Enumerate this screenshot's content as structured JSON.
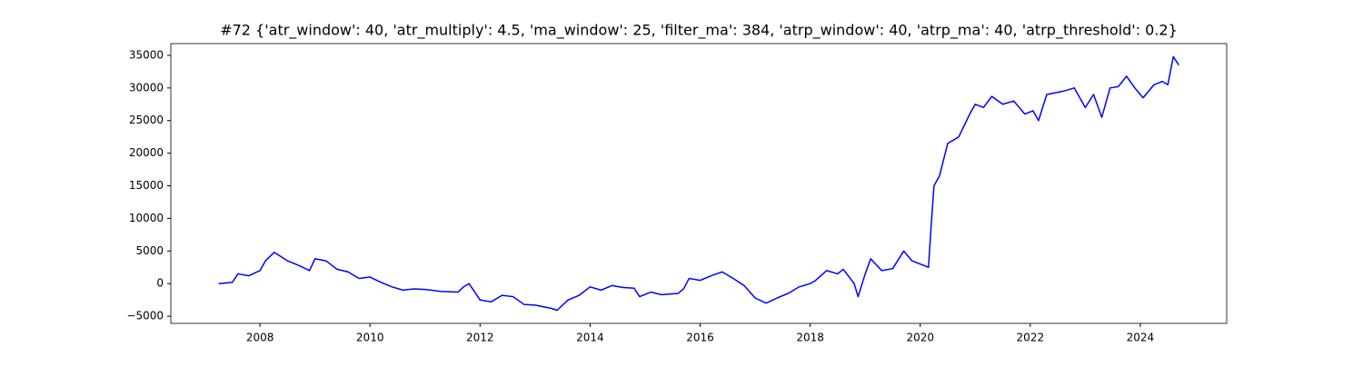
{
  "chart_data": {
    "type": "line",
    "title": "#72 {'atr_window': 40, 'atr_multiply': 4.5, 'ma_window': 25, 'filter_ma': 384, 'atrp_window': 40, 'atrp_ma': 40, 'atrp_threshold': 0.2}",
    "x": [
      2007.25,
      2007.5,
      2007.6,
      2007.8,
      2008.0,
      2008.1,
      2008.26,
      2008.5,
      2008.7,
      2008.9,
      2009.0,
      2009.2,
      2009.4,
      2009.6,
      2009.8,
      2010.0,
      2010.2,
      2010.4,
      2010.6,
      2010.8,
      2011.0,
      2011.3,
      2011.6,
      2011.7,
      2011.8,
      2012.0,
      2012.2,
      2012.4,
      2012.6,
      2012.8,
      2013.0,
      2013.3,
      2013.4,
      2013.6,
      2013.8,
      2014.0,
      2014.2,
      2014.4,
      2014.6,
      2014.8,
      2014.9,
      2015.1,
      2015.3,
      2015.6,
      2015.7,
      2015.8,
      2016.0,
      2016.2,
      2016.4,
      2016.6,
      2016.8,
      2017.0,
      2017.2,
      2017.4,
      2017.6,
      2017.8,
      2018.0,
      2018.1,
      2018.3,
      2018.5,
      2018.6,
      2018.8,
      2018.87,
      2019.0,
      2019.1,
      2019.3,
      2019.5,
      2019.7,
      2019.85,
      2020.0,
      2020.15,
      2020.2,
      2020.25,
      2020.35,
      2020.5,
      2020.7,
      2020.9,
      2021.0,
      2021.15,
      2021.3,
      2021.5,
      2021.7,
      2021.9,
      2022.05,
      2022.15,
      2022.3,
      2022.6,
      2022.8,
      2023.0,
      2023.15,
      2023.3,
      2023.45,
      2023.6,
      2023.75,
      2023.9,
      2024.05,
      2024.25,
      2024.4,
      2024.5,
      2024.6,
      2024.7
    ],
    "series": [
      {
        "color": "#0000ff",
        "values": [
          0,
          200,
          1500,
          1200,
          2000,
          3500,
          4800,
          3500,
          2800,
          2000,
          3800,
          3500,
          2200,
          1800,
          800,
          1000,
          200,
          -500,
          -1000,
          -800,
          -900,
          -1200,
          -1300,
          -500,
          0,
          -2500,
          -2800,
          -1800,
          -2000,
          -3200,
          -3300,
          -3800,
          -4100,
          -2500,
          -1800,
          -500,
          -1000,
          -300,
          -600,
          -700,
          -2000,
          -1300,
          -1700,
          -1500,
          -800,
          800,
          500,
          1200,
          1800,
          800,
          -300,
          -2200,
          -3000,
          -2200,
          -1500,
          -500,
          0,
          500,
          2000,
          1500,
          2200,
          0,
          -2000,
          1500,
          3800,
          2000,
          2300,
          5000,
          3500,
          3000,
          2500,
          9000,
          15000,
          16500,
          21500,
          22500,
          26000,
          27500,
          27000,
          28700,
          27500,
          28000,
          26000,
          26500,
          25000,
          29000,
          29500,
          30000,
          27000,
          29000,
          25500,
          30000,
          30200,
          31800,
          30000,
          28500,
          30500,
          31000,
          30500,
          34800,
          33500
        ]
      }
    ],
    "xlim": [
      2006.38,
      2025.57
    ],
    "xticks": [
      2008,
      2010,
      2012,
      2014,
      2016,
      2018,
      2020,
      2022,
      2024
    ],
    "ylim": [
      -6100,
      36800
    ],
    "yticks": [
      {
        "value": -5000,
        "label": "−5000"
      },
      0,
      5000,
      10000,
      15000,
      20000,
      25000,
      30000,
      35000
    ]
  }
}
